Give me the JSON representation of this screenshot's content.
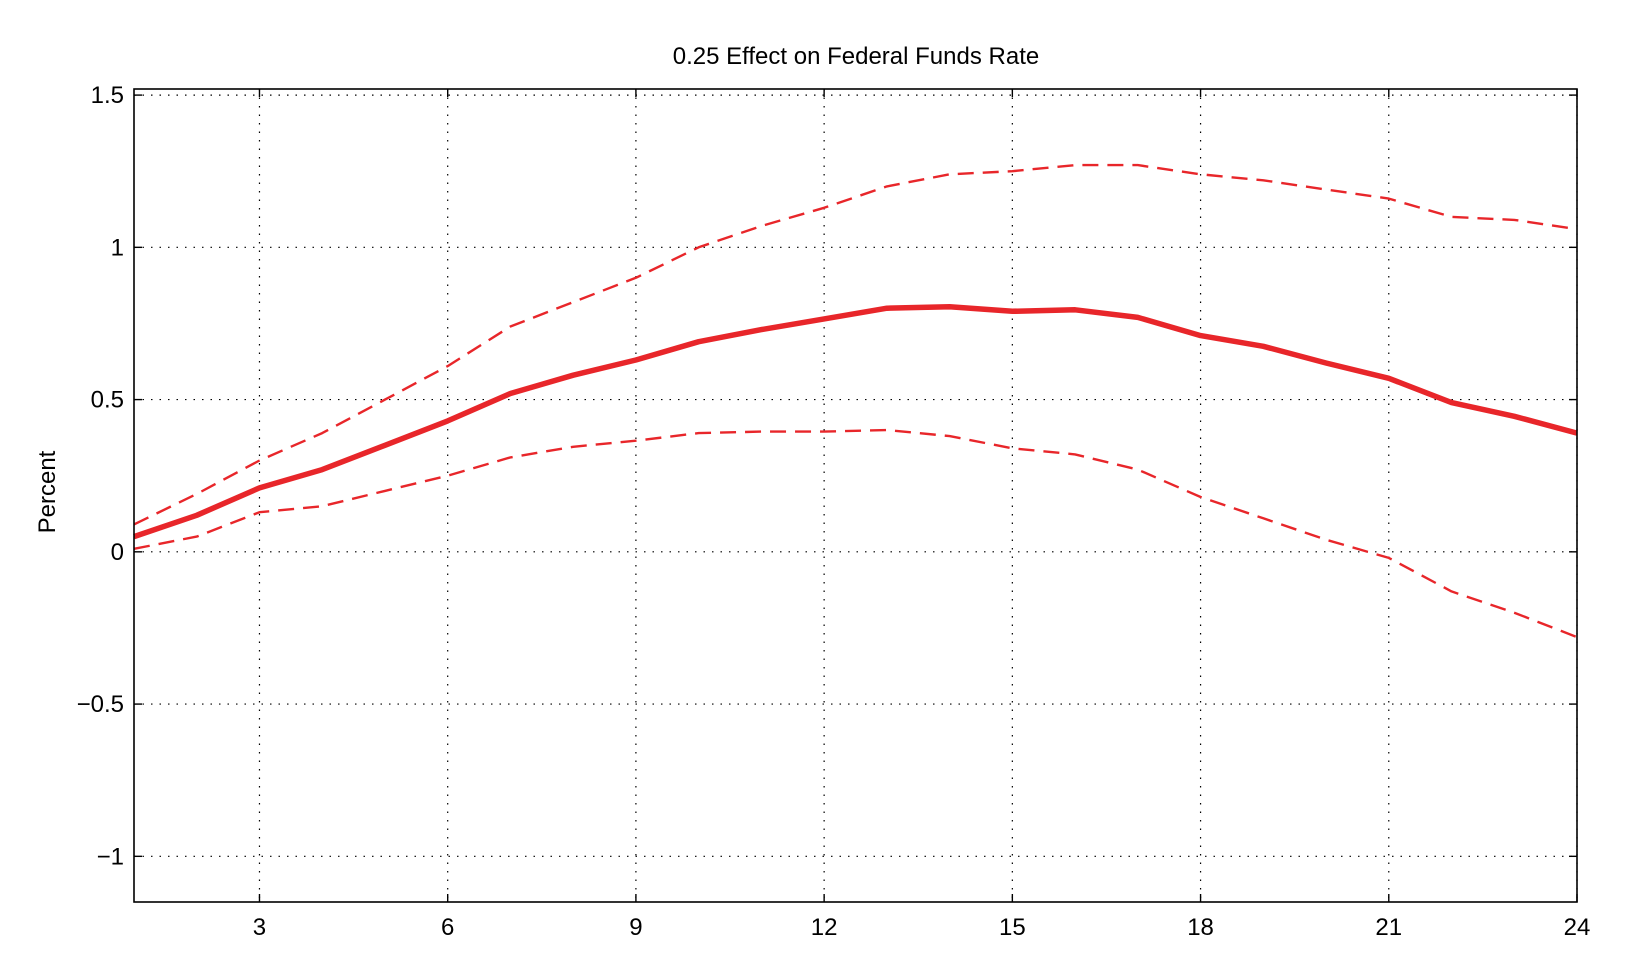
{
  "chart_data": {
    "type": "line",
    "title": "0.25 Effect on Federal Funds Rate",
    "xlabel": "",
    "ylabel": "Percent",
    "xlim": [
      1,
      24
    ],
    "ylim": [
      -1.15,
      1.52
    ],
    "x_ticks": [
      3,
      6,
      9,
      12,
      15,
      18,
      21,
      24
    ],
    "y_ticks": [
      -1,
      -0.5,
      0,
      0.5,
      1,
      1.5
    ],
    "y_tick_labels": [
      "−1",
      "−0.5",
      "0",
      "0.5",
      "1",
      "1.5"
    ],
    "grid": true,
    "colors": {
      "series": "#e8262a"
    },
    "x": [
      1,
      2,
      3,
      4,
      5,
      6,
      7,
      8,
      9,
      10,
      11,
      12,
      13,
      14,
      15,
      16,
      17,
      18,
      19,
      20,
      21,
      22,
      23,
      24
    ],
    "series": [
      {
        "style": "solid",
        "values": [
          0.05,
          0.12,
          0.21,
          0.27,
          0.35,
          0.43,
          0.52,
          0.58,
          0.63,
          0.69,
          0.73,
          0.765,
          0.8,
          0.805,
          0.79,
          0.795,
          0.77,
          0.71,
          0.675,
          0.62,
          0.57,
          0.49,
          0.445,
          0.39
        ]
      },
      {
        "style": "dashed",
        "values": [
          0.09,
          0.19,
          0.3,
          0.39,
          0.5,
          0.61,
          0.74,
          0.82,
          0.9,
          1.0,
          1.07,
          1.13,
          1.2,
          1.24,
          1.25,
          1.27,
          1.27,
          1.24,
          1.22,
          1.19,
          1.16,
          1.1,
          1.09,
          1.06
        ]
      },
      {
        "style": "dashed",
        "values": [
          0.01,
          0.05,
          0.13,
          0.15,
          0.2,
          0.25,
          0.31,
          0.345,
          0.365,
          0.39,
          0.395,
          0.395,
          0.4,
          0.38,
          0.34,
          0.32,
          0.27,
          0.18,
          0.11,
          0.04,
          -0.02,
          -0.13,
          -0.2,
          -0.28
        ]
      }
    ]
  }
}
